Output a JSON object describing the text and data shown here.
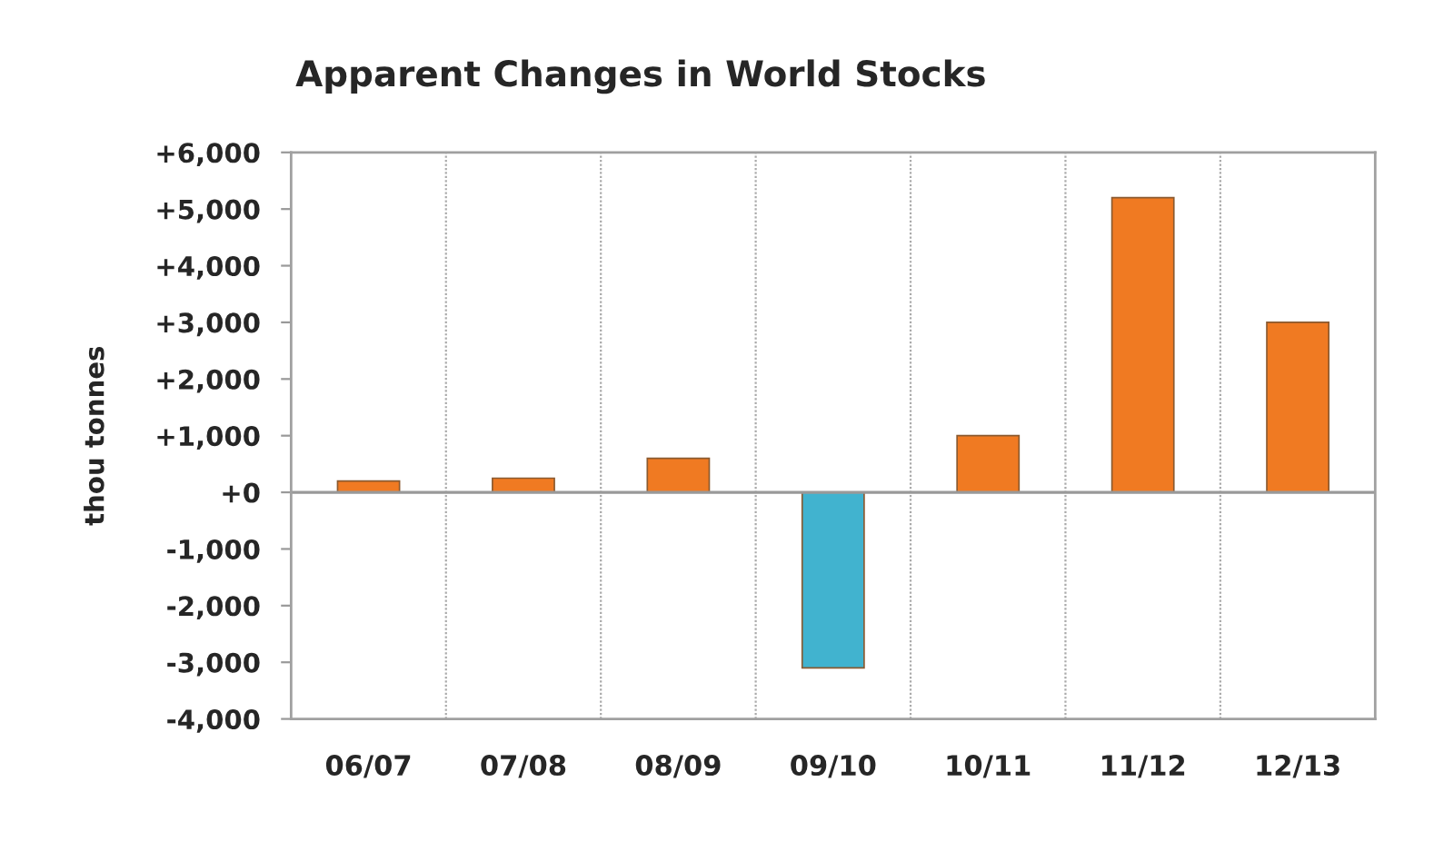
{
  "chart_data": {
    "type": "bar",
    "title": "Apparent Changes in World Stocks",
    "ylabel": "thou tonnes",
    "categories": [
      "06/07",
      "07/08",
      "08/09",
      "09/10",
      "10/11",
      "11/12",
      "12/13"
    ],
    "values": [
      200,
      250,
      600,
      -3100,
      1000,
      5200,
      3000
    ],
    "colors": [
      "#f07a22",
      "#f07a22",
      "#f07a22",
      "#41b3cf",
      "#f07a22",
      "#f07a22",
      "#f07a22"
    ],
    "ylim": [
      -4000,
      6000
    ],
    "yticks": [
      {
        "value": -4000,
        "label": "-4,000"
      },
      {
        "value": -3000,
        "label": "-3,000"
      },
      {
        "value": -2000,
        "label": "-2,000"
      },
      {
        "value": -1000,
        "label": "-1,000"
      },
      {
        "value": 0,
        "label": "+0"
      },
      {
        "value": 1000,
        "label": "+1,000"
      },
      {
        "value": 2000,
        "label": "+2,000"
      },
      {
        "value": 3000,
        "label": "+3,000"
      },
      {
        "value": 4000,
        "label": "+4,000"
      },
      {
        "value": 5000,
        "label": "+5,000"
      },
      {
        "value": 6000,
        "label": "+6,000"
      }
    ],
    "grid": "x",
    "legend": false
  }
}
